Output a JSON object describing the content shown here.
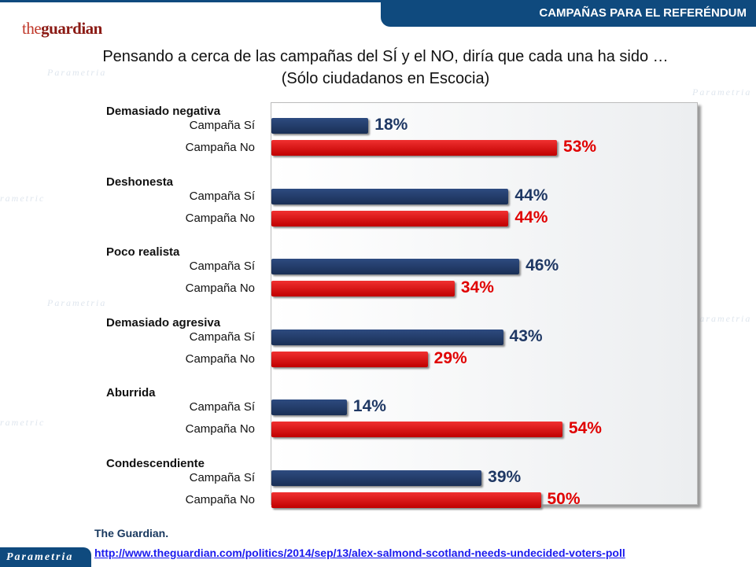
{
  "header": {
    "section_title": "CAMPAÑAS PARA EL REFERÉNDUM",
    "logo": "theguardian"
  },
  "footer": {
    "source": "The Guardian.",
    "url": "http://www.theguardian.com/politics/2014/sep/13/alex-salmond-scotland-needs-undecided-voters-poll",
    "brand": "Parametria"
  },
  "colors": {
    "si": "#1f3864",
    "no": "#e00000"
  },
  "chart_data": {
    "type": "bar",
    "orientation": "horizontal",
    "title": "Pensando a cerca de las campañas del SÍ y el NO, diría que cada una ha sido …",
    "subtitle": "(Sólo ciudadanos en Escocia)",
    "series_labels": [
      "Campaña Sí",
      "Campaña No"
    ],
    "categories": [
      "Demasiado negativa",
      "Deshonesta",
      "Poco realista",
      "Demasiado agresiva",
      "Aburrida",
      "Condescendiente"
    ],
    "series": [
      {
        "name": "Campaña Sí",
        "values": [
          18,
          44,
          46,
          43,
          14,
          39
        ]
      },
      {
        "name": "Campaña No",
        "values": [
          53,
          44,
          34,
          29,
          54,
          50
        ]
      }
    ],
    "unit": "%",
    "xlim": [
      0,
      79
    ],
    "grid": false
  }
}
